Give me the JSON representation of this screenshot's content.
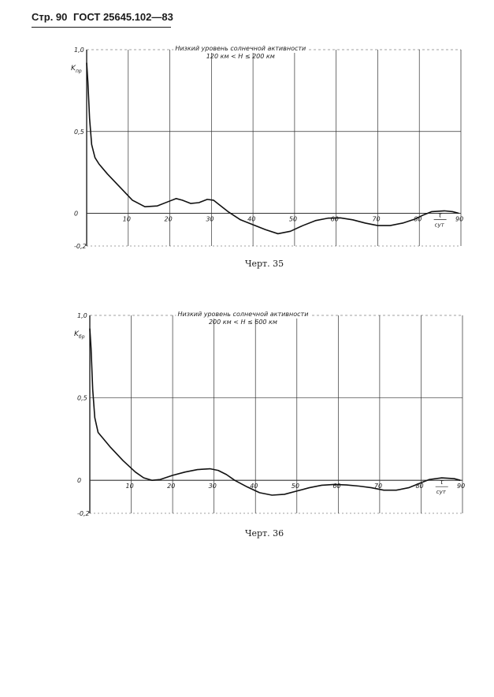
{
  "header": {
    "page_label": "Стр. 90",
    "standard": "ГОСТ 25645.102—83"
  },
  "chart_data": [
    {
      "type": "line",
      "caption": "Черт. 35",
      "legend_line1": "Низкий уровень солнечной активности",
      "legend_line2": "120 км < H ≤ 200 км",
      "ylabel": "K",
      "ylabel_sub": "пр",
      "xlabel_num": "τ",
      "xlabel_den": "сут",
      "xlim": [
        0,
        90
      ],
      "ylim": [
        -0.2,
        1.0
      ],
      "x_ticks": [
        "10",
        "20",
        "30",
        "40",
        "50",
        "60",
        "70",
        "80",
        "90"
      ],
      "y_ticks": [
        "1,0",
        "0,5",
        "0",
        "-0,2"
      ],
      "series": [
        {
          "x": [
            0,
            0.3,
            0.7,
            1.2,
            2,
            3,
            5,
            8,
            11,
            14,
            17,
            20,
            21.5,
            23,
            25,
            27,
            29,
            30.5,
            32,
            34,
            37,
            40,
            43,
            46,
            49,
            52,
            55,
            58,
            61,
            64,
            67,
            70,
            73,
            76,
            79,
            81,
            83,
            86,
            88,
            89.5
          ],
          "y": [
            0.92,
            0.8,
            0.58,
            0.42,
            0.34,
            0.3,
            0.24,
            0.16,
            0.08,
            0.04,
            0.045,
            0.075,
            0.09,
            0.08,
            0.06,
            0.065,
            0.085,
            0.08,
            0.05,
            0.01,
            -0.04,
            -0.07,
            -0.1,
            -0.125,
            -0.11,
            -0.075,
            -0.045,
            -0.03,
            -0.028,
            -0.04,
            -0.06,
            -0.075,
            -0.075,
            -0.06,
            -0.035,
            -0.01,
            0.01,
            0.015,
            0.01,
            0.0
          ]
        }
      ]
    },
    {
      "type": "line",
      "caption": "Черт. 36",
      "legend_line1": "Низкий уровень солнечной активности",
      "legend_line2": "200 км < H ≤ 600 км",
      "ylabel": "K",
      "ylabel_sub": "бр",
      "xlabel_num": "τ",
      "xlabel_den": "сут",
      "xlim": [
        0,
        90
      ],
      "ylim": [
        -0.2,
        1.0
      ],
      "x_ticks": [
        "10",
        "20",
        "30",
        "40",
        "50",
        "60",
        "70",
        "80",
        "90"
      ],
      "y_ticks": [
        "1,0",
        "0,5",
        "0",
        "-0,2"
      ],
      "series": [
        {
          "x": [
            0,
            0.3,
            0.7,
            1.2,
            2,
            3,
            5,
            8,
            11,
            13,
            15,
            17,
            20,
            23,
            26,
            29,
            31,
            33,
            35,
            38,
            41,
            44,
            47,
            50,
            53,
            56,
            59,
            62,
            65,
            68,
            71,
            74,
            77,
            80,
            82,
            85,
            88,
            89.5
          ],
          "y": [
            0.92,
            0.8,
            0.55,
            0.38,
            0.29,
            0.26,
            0.2,
            0.12,
            0.05,
            0.015,
            0.0,
            0.005,
            0.03,
            0.05,
            0.065,
            0.07,
            0.06,
            0.035,
            0.0,
            -0.04,
            -0.075,
            -0.09,
            -0.085,
            -0.065,
            -0.045,
            -0.03,
            -0.025,
            -0.028,
            -0.035,
            -0.045,
            -0.06,
            -0.06,
            -0.045,
            -0.015,
            0.005,
            0.015,
            0.01,
            0.0
          ]
        }
      ]
    }
  ]
}
